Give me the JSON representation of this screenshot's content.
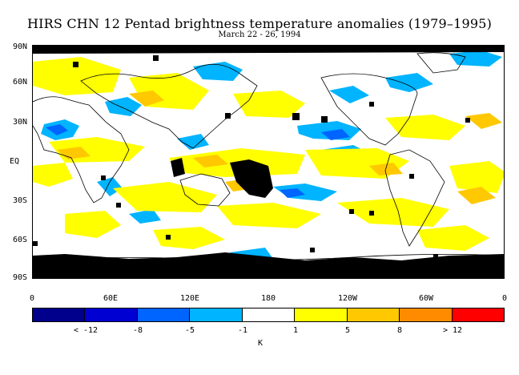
{
  "title": "HIRS CHN 12 Pentad brightness temperature anomalies (1979–1995)",
  "subtitle": "March 22 - 26, 1994",
  "lat_labels": [
    "90N",
    "60N",
    "30N",
    "EQ",
    "30S",
    "60S",
    "90S"
  ],
  "lon_labels": [
    "0",
    "60E",
    "120E",
    "180",
    "120W",
    "60W",
    "0"
  ],
  "colorbar": {
    "colors": [
      "#00008c",
      "#0000d2",
      "#0064ff",
      "#00b4ff",
      "#ffffff",
      "#ffff00",
      "#ffc800",
      "#ff8c00",
      "#ff0000"
    ],
    "labels": [
      "< -12",
      "-8",
      "-5",
      "-1",
      "1",
      "5",
      "8",
      "> 12"
    ],
    "units": "K"
  },
  "map_colors": {
    "missing": "#000000",
    "coast": "#000000"
  }
}
